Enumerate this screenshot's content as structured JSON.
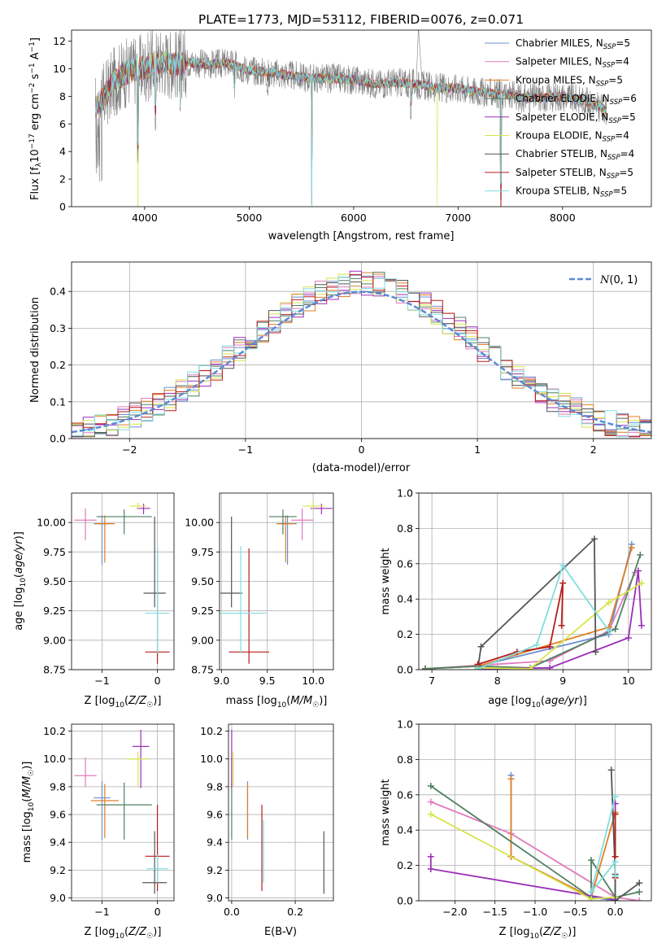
{
  "colors": {
    "Chabrier MILES": "#6a8fd0",
    "Salpeter MILES": "#e07bbd",
    "Kroupa MILES": "#e07f27",
    "Chabrier ELODIE": "#4e8060",
    "Salpeter ELODIE": "#9c2fb8",
    "Kroupa ELODIE": "#d6e54c",
    "Chabrier STELIB": "#555555",
    "Salpeter STELIB": "#b81c1c",
    "Kroupa STELIB": "#80dde0"
  },
  "chart_data": [
    {
      "id": "spectrum",
      "type": "line",
      "title": "PLATE=1773, MJD=53112, FIBERID=0076, z=0.071",
      "xlabel": "wavelength [Angstrom, rest frame]",
      "ylabel": "Flux [f_λ 10^-17 erg cm^-2 s^-1 A^-1]",
      "xlim": [
        3300,
        8850
      ],
      "ylim": [
        0,
        12.8
      ],
      "xticks": [
        4000,
        5000,
        6000,
        7000,
        8000
      ],
      "yticks": [
        0,
        2,
        4,
        6,
        8,
        10,
        12
      ],
      "legend_placement": "top-right",
      "data_wavelength_range": [
        3530,
        8420
      ],
      "continuum": {
        "x": [
          3530,
          3600,
          3700,
          3800,
          3900,
          4000,
          4100,
          4200,
          4300,
          4400,
          4600,
          4800,
          5000,
          5200,
          5400,
          5600,
          5800,
          6000,
          6200,
          6400,
          6600,
          6800,
          7000,
          7200,
          7400,
          7600,
          7800,
          8000,
          8200,
          8420
        ],
        "y": [
          7.3,
          7.8,
          9.0,
          9.6,
          9.9,
          10.0,
          10.4,
          10.5,
          10.3,
          10.5,
          10.3,
          10.4,
          9.9,
          9.7,
          9.5,
          9.3,
          9.3,
          9.2,
          8.9,
          9.0,
          8.9,
          8.6,
          8.6,
          8.3,
          8.2,
          7.9,
          7.9,
          8.0,
          7.7,
          7.0
        ]
      },
      "absorption_lines": [
        {
          "x": 3934,
          "y": 3.0
        },
        {
          "x": 4102,
          "y": 5.5
        },
        {
          "x": 4340,
          "y": 5.3
        },
        {
          "x": 4861,
          "y": 7.5
        },
        {
          "x": 5175,
          "y": 8.0
        },
        {
          "x": 5600,
          "y": 0.0
        },
        {
          "x": 6550,
          "y": 6.3
        },
        {
          "x": 7410,
          "y": 0.2
        }
      ],
      "series_labels": [
        "Chabrier MILES, N_SSP=5",
        "Salpeter MILES, N_SSP=4",
        "Kroupa MILES, N_SSP=5",
        "Chabrier ELODIE, N_SSP=6",
        "Salpeter ELODIE, N_SSP=5",
        "Kroupa ELODIE, N_SSP=4",
        "Chabrier STELIB, N_SSP=4",
        "Salpeter STELIB, N_SSP=5",
        "Kroupa STELIB, N_SSP=5"
      ],
      "legend": [
        {
          "model": "Chabrier MILES",
          "n_ssp": "5"
        },
        {
          "model": "Salpeter MILES",
          "n_ssp": "4"
        },
        {
          "model": "Kroupa MILES",
          "n_ssp": "5"
        },
        {
          "model": "Chabrier ELODIE",
          "n_ssp": "6"
        },
        {
          "model": "Salpeter ELODIE",
          "n_ssp": "5"
        },
        {
          "model": "Kroupa ELODIE",
          "n_ssp": "4"
        },
        {
          "model": "Chabrier STELIB",
          "n_ssp": "4"
        },
        {
          "model": "Salpeter STELIB",
          "n_ssp": "5"
        },
        {
          "model": "Kroupa STELIB",
          "n_ssp": "5"
        }
      ],
      "data_color": "#808080"
    },
    {
      "id": "residuals",
      "type": "line",
      "xlabel": "(data-model)/error",
      "ylabel": "Normed distribution",
      "xlim": [
        -2.5,
        2.5
      ],
      "ylim": [
        0,
        0.48
      ],
      "xticks": [
        -2,
        -1,
        0,
        1,
        2
      ],
      "yticks": [
        0.0,
        0.1,
        0.2,
        0.3,
        0.4
      ],
      "grid": true,
      "bin_width": 0.1,
      "legend_placement": "top-right",
      "gaussian_label": "N(0,1)",
      "gaussian_color": "#5b8ad6"
    },
    {
      "id": "age-vs-Z",
      "type": "scatter",
      "xlabel": "Z [log10(Z/Z☉)]",
      "ylabel": "age  [log10(age/yr)]",
      "xlim": [
        -1.55,
        0.3
      ],
      "ylim": [
        8.75,
        10.25
      ],
      "xticks": [
        -1,
        0
      ],
      "yticks": [
        8.75,
        9.0,
        9.25,
        9.5,
        9.75,
        10.0
      ],
      "grid": true,
      "points": [
        {
          "model": "Chabrier MILES",
          "x": -1.0,
          "y": 9.99,
          "xerr": 0.15,
          "yerr": [
            0.35,
            0.07
          ]
        },
        {
          "model": "Salpeter MILES",
          "x": -1.3,
          "y": 10.02,
          "xerr": 0.2,
          "yerr": [
            0.17,
            0.1
          ]
        },
        {
          "model": "Kroupa MILES",
          "x": -0.95,
          "y": 9.99,
          "xerr": 0.18,
          "yerr": [
            0.33,
            0.07
          ]
        },
        {
          "model": "Chabrier ELODIE",
          "x": -0.6,
          "y": 10.05,
          "xerr": 0.5,
          "yerr": [
            0.15,
            0.06
          ]
        },
        {
          "model": "Salpeter ELODIE",
          "x": -0.25,
          "y": 10.12,
          "xerr": 0.12,
          "yerr": [
            0.05,
            0.04
          ]
        },
        {
          "model": "Kroupa ELODIE",
          "x": -0.35,
          "y": 10.14,
          "xerr": 0.15,
          "yerr": [
            0.03,
            0.03
          ]
        },
        {
          "model": "Chabrier STELIB",
          "x": -0.05,
          "y": 9.4,
          "xerr": 0.2,
          "yerr": [
            0.12,
            0.65
          ]
        },
        {
          "model": "Salpeter STELIB",
          "x": 0.0,
          "y": 8.9,
          "xerr": 0.22,
          "yerr": [
            0.1,
            0.88
          ]
        },
        {
          "model": "Kroupa STELIB",
          "x": 0.0,
          "y": 9.23,
          "xerr": 0.22,
          "yerr": [
            0.34,
            0.57
          ]
        }
      ]
    },
    {
      "id": "age-vs-mass",
      "type": "scatter",
      "xlabel": "mass [log10(M/M☉)]",
      "ylabel": "",
      "xlim": [
        8.98,
        10.22
      ],
      "ylim": [
        8.75,
        10.25
      ],
      "xticks": [
        9.0,
        9.5,
        10.0
      ],
      "yticks": [
        8.75,
        9.0,
        9.25,
        9.5,
        9.75,
        10.0
      ],
      "grid": true,
      "points": [
        {
          "model": "Chabrier MILES",
          "x": 9.72,
          "y": 9.99,
          "xerr": 0.1,
          "yerr": [
            0.35,
            0.07
          ]
        },
        {
          "model": "Salpeter MILES",
          "x": 9.88,
          "y": 10.02,
          "xerr": 0.12,
          "yerr": [
            0.17,
            0.1
          ]
        },
        {
          "model": "Kroupa MILES",
          "x": 9.7,
          "y": 9.99,
          "xerr": 0.1,
          "yerr": [
            0.33,
            0.07
          ]
        },
        {
          "model": "Chabrier ELODIE",
          "x": 9.67,
          "y": 10.05,
          "xerr": 0.15,
          "yerr": [
            0.15,
            0.06
          ]
        },
        {
          "model": "Salpeter ELODIE",
          "x": 10.09,
          "y": 10.12,
          "xerr": 0.12,
          "yerr": [
            0.05,
            0.04
          ]
        },
        {
          "model": "Kroupa ELODIE",
          "x": 10.0,
          "y": 10.14,
          "xerr": 0.12,
          "yerr": [
            0.03,
            0.03
          ]
        },
        {
          "model": "Chabrier STELIB",
          "x": 9.11,
          "y": 9.4,
          "xerr": 0.12,
          "yerr": [
            0.12,
            0.65
          ]
        },
        {
          "model": "Salpeter STELIB",
          "x": 9.3,
          "y": 8.9,
          "xerr": 0.22,
          "yerr": [
            0.1,
            0.88
          ]
        },
        {
          "model": "Kroupa STELIB",
          "x": 9.21,
          "y": 9.23,
          "xerr": 0.28,
          "yerr": [
            0.34,
            0.57
          ]
        }
      ]
    },
    {
      "id": "weight-vs-age",
      "type": "line",
      "xlabel": "age  [log10(age/yr)]",
      "ylabel": "mass weight",
      "xlim": [
        6.8,
        10.35
      ],
      "ylim": [
        0,
        1.0
      ],
      "xticks": [
        7,
        8,
        9,
        10
      ],
      "yticks": [
        0.0,
        0.2,
        0.4,
        0.6,
        0.8,
        1.0
      ],
      "grid": true,
      "series": [
        {
          "model": "Chabrier MILES",
          "x": [
            6.9,
            7.7,
            9.7,
            10.05
          ],
          "y": [
            0.005,
            0.02,
            0.2,
            0.71
          ]
        },
        {
          "model": "Salpeter MILES",
          "x": [
            6.9,
            8.8,
            9.7,
            10.1
          ],
          "y": [
            0.005,
            0.05,
            0.22,
            0.55
          ]
        },
        {
          "model": "Kroupa MILES",
          "x": [
            6.9,
            7.7,
            9.7,
            10.05
          ],
          "y": [
            0.005,
            0.02,
            0.24,
            0.69
          ]
        },
        {
          "model": "Chabrier ELODIE",
          "x": [
            6.9,
            7.7,
            8.5,
            9.8,
            10.18
          ],
          "y": [
            0.005,
            0.02,
            0.01,
            0.23,
            0.65
          ]
        },
        {
          "model": "Salpeter ELODIE",
          "x": [
            7.7,
            8.8,
            10.0,
            10.15,
            10.2
          ],
          "y": [
            0.005,
            0.01,
            0.18,
            0.56,
            0.25
          ]
        },
        {
          "model": "Kroupa ELODIE",
          "x": [
            7.7,
            8.5,
            9.7,
            10.2
          ],
          "y": [
            0.01,
            0.005,
            0.38,
            0.49
          ]
        },
        {
          "model": "Chabrier STELIB",
          "x": [
            7.7,
            7.75,
            9.48,
            9.5
          ],
          "y": [
            0.0,
            0.13,
            0.74,
            0.1
          ]
        },
        {
          "model": "Salpeter STELIB",
          "x": [
            7.7,
            8.3,
            8.8,
            9.0,
            8.98
          ],
          "y": [
            0.03,
            0.1,
            0.13,
            0.49,
            0.25
          ]
        },
        {
          "model": "Kroupa STELIB",
          "x": [
            7.7,
            8.6,
            9.0,
            9.7
          ],
          "y": [
            0.005,
            0.14,
            0.59,
            0.22
          ]
        }
      ]
    },
    {
      "id": "mass-vs-Z",
      "type": "scatter",
      "xlabel": "Z [log10(Z/Z☉)]",
      "ylabel": "mass [log10(M/M☉)]",
      "xlim": [
        -1.55,
        0.3
      ],
      "ylim": [
        8.98,
        10.25
      ],
      "xticks": [
        -1,
        0
      ],
      "yticks": [
        9.0,
        9.2,
        9.4,
        9.6,
        9.8,
        10.0,
        10.2
      ],
      "grid": true,
      "points": [
        {
          "model": "Chabrier MILES",
          "x": -1.0,
          "y": 9.72,
          "xerr": 0.15,
          "yerr": [
            0.3,
            0.12
          ]
        },
        {
          "model": "Salpeter MILES",
          "x": -1.3,
          "y": 9.88,
          "xerr": 0.2,
          "yerr": [
            0.08,
            0.13
          ]
        },
        {
          "model": "Kroupa MILES",
          "x": -0.95,
          "y": 9.7,
          "xerr": 0.25,
          "yerr": [
            0.27,
            0.12
          ]
        },
        {
          "model": "Chabrier ELODIE",
          "x": -0.6,
          "y": 9.67,
          "xerr": 0.5,
          "yerr": [
            0.25,
            0.16
          ]
        },
        {
          "model": "Salpeter ELODIE",
          "x": -0.3,
          "y": 10.09,
          "xerr": 0.15,
          "yerr": [
            0.3,
            0.12
          ]
        },
        {
          "model": "Kroupa ELODIE",
          "x": -0.35,
          "y": 10.0,
          "xerr": 0.2,
          "yerr": [
            0.2,
            0.05
          ]
        },
        {
          "model": "Chabrier STELIB",
          "x": -0.05,
          "y": 9.11,
          "xerr": 0.22,
          "yerr": [
            0.08,
            0.37
          ]
        },
        {
          "model": "Salpeter STELIB",
          "x": 0.0,
          "y": 9.3,
          "xerr": 0.22,
          "yerr": [
            0.25,
            0.37
          ]
        },
        {
          "model": "Kroupa STELIB",
          "x": 0.0,
          "y": 9.21,
          "xerr": 0.2,
          "yerr": [
            0.1,
            0.1
          ]
        }
      ]
    },
    {
      "id": "mass-vs-ebv",
      "type": "scatter",
      "xlabel": "E(B-V)",
      "ylabel": "",
      "xlim": [
        -0.01,
        0.32
      ],
      "ylim": [
        8.98,
        10.25
      ],
      "xticks": [
        0.0,
        0.2
      ],
      "yticks": [
        9.0,
        9.2,
        9.4,
        9.6,
        9.8,
        10.0,
        10.2
      ],
      "grid": true,
      "points": [
        {
          "model": "Chabrier MILES",
          "x": 0.05,
          "y": 9.72,
          "xerr": 0,
          "yerr": [
            0.3,
            0.12
          ]
        },
        {
          "model": "Salpeter MILES",
          "x": 0.0,
          "y": 9.88,
          "xerr": 0,
          "yerr": [
            0.08,
            0.13
          ]
        },
        {
          "model": "Kroupa MILES",
          "x": 0.05,
          "y": 9.7,
          "xerr": 0,
          "yerr": [
            0.27,
            0.12
          ]
        },
        {
          "model": "Chabrier ELODIE",
          "x": 0.0,
          "y": 9.67,
          "xerr": 0,
          "yerr": [
            0.25,
            0.16
          ]
        },
        {
          "model": "Salpeter ELODIE",
          "x": 0.0,
          "y": 10.09,
          "xerr": 0,
          "yerr": [
            0.3,
            0.12
          ]
        },
        {
          "model": "Kroupa ELODIE",
          "x": 0.005,
          "y": 10.0,
          "xerr": 0,
          "yerr": [
            0.2,
            0.05
          ]
        },
        {
          "model": "Chabrier STELIB",
          "x": 0.29,
          "y": 9.11,
          "xerr": 0,
          "yerr": [
            0.08,
            0.37
          ]
        },
        {
          "model": "Salpeter STELIB",
          "x": 0.095,
          "y": 9.3,
          "xerr": 0,
          "yerr": [
            0.25,
            0.37
          ]
        },
        {
          "model": "Kroupa STELIB",
          "x": 0.1,
          "y": 9.21,
          "xerr": 0,
          "yerr": [
            0.1,
            0.35
          ]
        }
      ]
    },
    {
      "id": "weight-vs-Z",
      "type": "line",
      "xlabel": "Z [log10(Z/Z☉)]",
      "ylabel": "mass weight",
      "xlim": [
        -2.45,
        0.45
      ],
      "ylim": [
        0,
        1.0
      ],
      "xticks": [
        -2.0,
        -1.5,
        -1.0,
        -0.5,
        0.0
      ],
      "yticks": [
        0.0,
        0.2,
        0.4,
        0.6,
        0.8,
        1.0
      ],
      "grid": true,
      "series": [
        {
          "model": "Chabrier MILES",
          "x": [
            -1.3,
            -1.3,
            -0.3,
            0.0
          ],
          "y": [
            0.71,
            0.25,
            0.02,
            0.0
          ]
        },
        {
          "model": "Salpeter MILES",
          "x": [
            -2.3,
            -1.3,
            0.0,
            0.3
          ],
          "y": [
            0.56,
            0.38,
            0.02,
            0.0
          ]
        },
        {
          "model": "Kroupa MILES",
          "x": [
            -1.3,
            -1.3,
            -0.3,
            0.0,
            0.0
          ],
          "y": [
            0.69,
            0.25,
            0.02,
            0.5,
            0.02
          ]
        },
        {
          "model": "Chabrier ELODIE",
          "x": [
            -2.3,
            -0.3,
            -0.3,
            0.0,
            0.3
          ],
          "y": [
            0.65,
            0.02,
            0.23,
            0.02,
            0.05
          ]
        },
        {
          "model": "Salpeter ELODIE",
          "x": [
            -2.3,
            -2.3,
            0.0,
            0.0
          ],
          "y": [
            0.25,
            0.18,
            0.005,
            0.55
          ]
        },
        {
          "model": "Kroupa ELODIE",
          "x": [
            -2.3,
            -0.3,
            0.0
          ],
          "y": [
            0.49,
            0.01,
            0.02
          ]
        },
        {
          "model": "Chabrier STELIB",
          "x": [
            -0.05,
            0.0,
            0.0,
            0.3
          ],
          "y": [
            0.74,
            0.15,
            0.0,
            0.1
          ]
        },
        {
          "model": "Salpeter STELIB",
          "x": [
            0.0,
            0.0,
            0.0
          ],
          "y": [
            0.49,
            0.25,
            0.13
          ]
        },
        {
          "model": "Kroupa STELIB",
          "x": [
            0.0,
            -0.3,
            0.0,
            0.0
          ],
          "y": [
            0.59,
            0.05,
            0.22,
            0.14
          ]
        }
      ]
    }
  ]
}
